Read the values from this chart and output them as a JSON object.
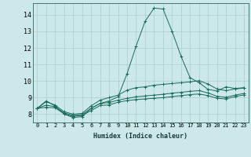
{
  "xlabel": "Humidex (Indice chaleur)",
  "bg_color": "#cce8ea",
  "grid_color": "#aacdd0",
  "line_color": "#1a6b5a",
  "xlim": [
    -0.5,
    23.5
  ],
  "ylim": [
    7.5,
    14.7
  ],
  "xticks": [
    0,
    1,
    2,
    3,
    4,
    5,
    6,
    7,
    8,
    9,
    10,
    11,
    12,
    13,
    14,
    15,
    16,
    17,
    18,
    19,
    20,
    21,
    22,
    23
  ],
  "yticks": [
    8,
    9,
    10,
    11,
    12,
    13,
    14
  ],
  "series": [
    [
      8.35,
      8.8,
      8.5,
      8.0,
      7.8,
      7.85,
      8.35,
      8.65,
      8.8,
      9.05,
      10.45,
      12.1,
      13.6,
      14.4,
      14.35,
      13.0,
      11.5,
      10.2,
      9.9,
      9.5,
      9.4,
      9.65,
      9.55,
      9.6
    ],
    [
      8.35,
      8.75,
      8.55,
      8.15,
      8.0,
      8.05,
      8.5,
      8.85,
      9.0,
      9.15,
      9.45,
      9.6,
      9.65,
      9.75,
      9.8,
      9.85,
      9.9,
      9.95,
      10.02,
      9.82,
      9.52,
      9.42,
      9.52,
      9.58
    ],
    [
      8.35,
      8.55,
      8.45,
      8.08,
      7.92,
      7.98,
      8.35,
      8.65,
      8.7,
      8.85,
      8.95,
      9.05,
      9.1,
      9.15,
      9.2,
      9.27,
      9.32,
      9.38,
      9.42,
      9.28,
      9.08,
      9.02,
      9.15,
      9.25
    ],
    [
      8.35,
      8.42,
      8.38,
      8.02,
      7.87,
      7.92,
      8.22,
      8.52,
      8.56,
      8.72,
      8.82,
      8.88,
      8.92,
      8.96,
      9.0,
      9.06,
      9.12,
      9.18,
      9.22,
      9.12,
      8.96,
      8.92,
      9.06,
      9.16
    ]
  ]
}
